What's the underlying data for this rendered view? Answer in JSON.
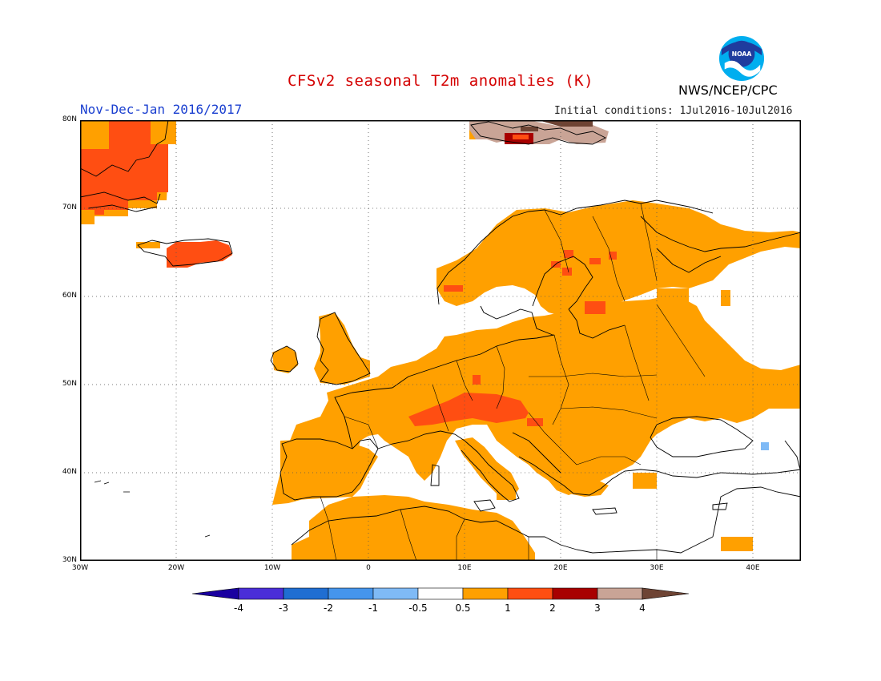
{
  "header": {
    "title": "CFSv2 seasonal T2m anomalies (K)",
    "period": "Nov-Dec-Jan 2016/2017",
    "initial_conditions": "Initial conditions:  1Jul2016-10Jul2016",
    "agency": "NWS/NCEP/CPC",
    "logo_text": "NOAA"
  },
  "map": {
    "lon_range": [
      -30,
      45
    ],
    "lat_range": [
      30,
      80
    ],
    "lat_ticks": [
      "30N",
      "40N",
      "50N",
      "60N",
      "70N",
      "80N"
    ],
    "lon_ticks": [
      "30W",
      "20W",
      "10W",
      "0",
      "10E",
      "20E",
      "30E",
      "40E"
    ],
    "grid": true,
    "anomaly_regions": [
      {
        "name": "Western Europe",
        "category": "0.5 to 1"
      },
      {
        "name": "Central and Eastern Europe",
        "category": "0.5 to 1"
      },
      {
        "name": "Scandinavia and Finland",
        "category": "0.5 to 1"
      },
      {
        "name": "North Africa",
        "category": "0.5 to 1"
      },
      {
        "name": "Alps",
        "category": "1 to 2"
      },
      {
        "name": "Iceland",
        "category": "1 to 2"
      },
      {
        "name": "East Greenland",
        "category": "1 to 2"
      },
      {
        "name": "Svalbard",
        "category": "3 to 4"
      }
    ]
  },
  "colorbar": {
    "labels": [
      "-4",
      "-3",
      "-2",
      "-1",
      "-0.5",
      "0.5",
      "1",
      "2",
      "3",
      "4"
    ],
    "colors": {
      "lt_-4": "#1a00a0",
      "-4_-3": "#4a2ed8",
      "-3_-2": "#1f6ed2",
      "-2_-1": "#4595ec",
      "-1_-0.5": "#7fbaf6",
      "-0.5_0.5": "#ffffff",
      "0.5_1": "#ffa000",
      "1_2": "#ff4e12",
      "2_3": "#a80000",
      "3_4": "#c9a496",
      "gt_4": "#6e4434"
    }
  }
}
